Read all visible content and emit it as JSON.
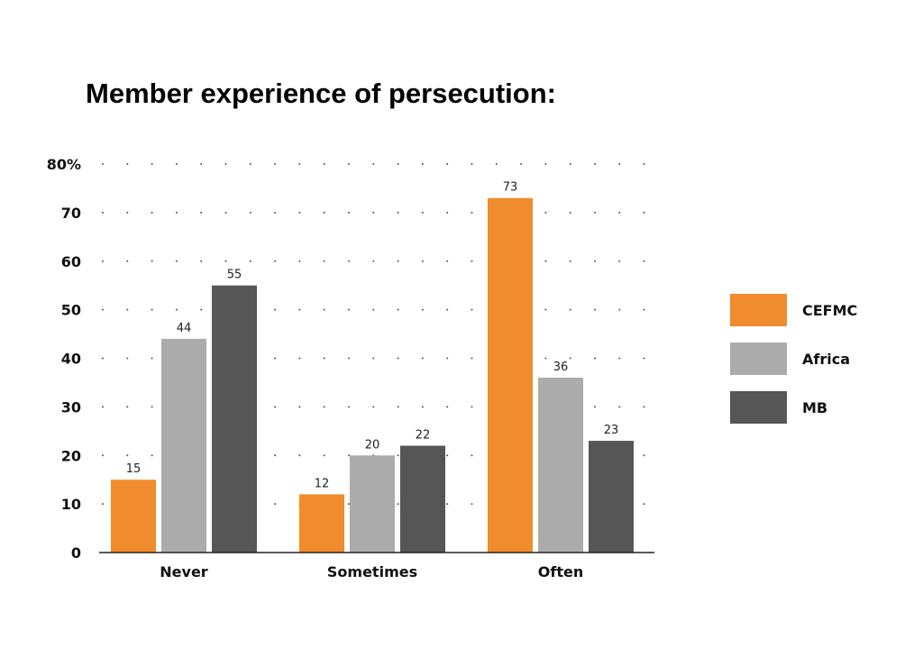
{
  "chart_data": {
    "type": "bar",
    "title": "Member experience of persecution:",
    "xlabel": "",
    "ylabel": "",
    "categories": [
      "Never",
      "Sometimes",
      "Often"
    ],
    "series": [
      {
        "name": "CEFMC",
        "values": [
          15,
          12,
          73
        ],
        "color": "#f08c2d"
      },
      {
        "name": "Africa",
        "values": [
          44,
          20,
          36
        ],
        "color": "#ababab"
      },
      {
        "name": "MB",
        "values": [
          55,
          22,
          23
        ],
        "color": "#565656"
      }
    ],
    "ylim": [
      0,
      80
    ],
    "yticks": [
      "0",
      "10",
      "20",
      "30",
      "40",
      "50",
      "60",
      "70",
      "80%"
    ],
    "grid": "dotted",
    "legend": "right"
  }
}
